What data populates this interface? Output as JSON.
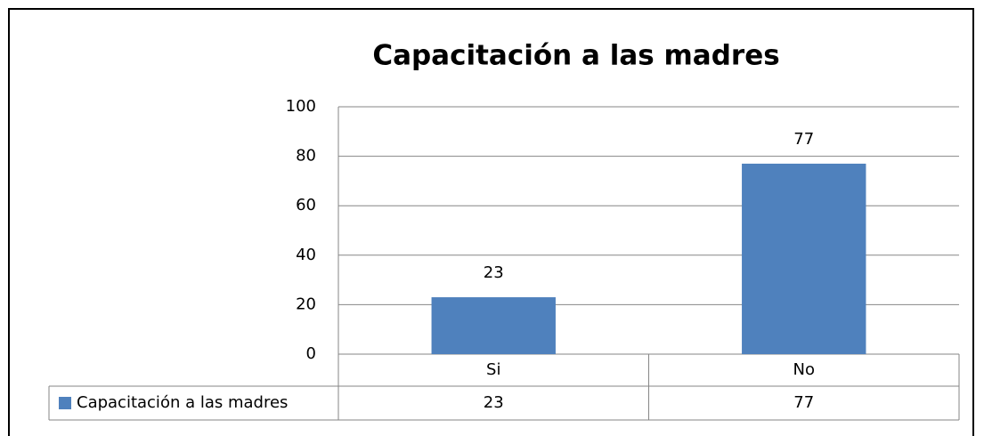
{
  "chart_data": {
    "type": "bar",
    "title": "Capacitación a las madres",
    "categories": [
      "Si",
      "No"
    ],
    "series": [
      {
        "name": "Capacitación a las madres",
        "color": "#4f81bd",
        "values": [
          23,
          77
        ]
      }
    ],
    "ylim": [
      0,
      100
    ],
    "yticks": [
      0,
      20,
      40,
      60,
      80,
      100
    ],
    "grid": true,
    "data_table": true
  }
}
